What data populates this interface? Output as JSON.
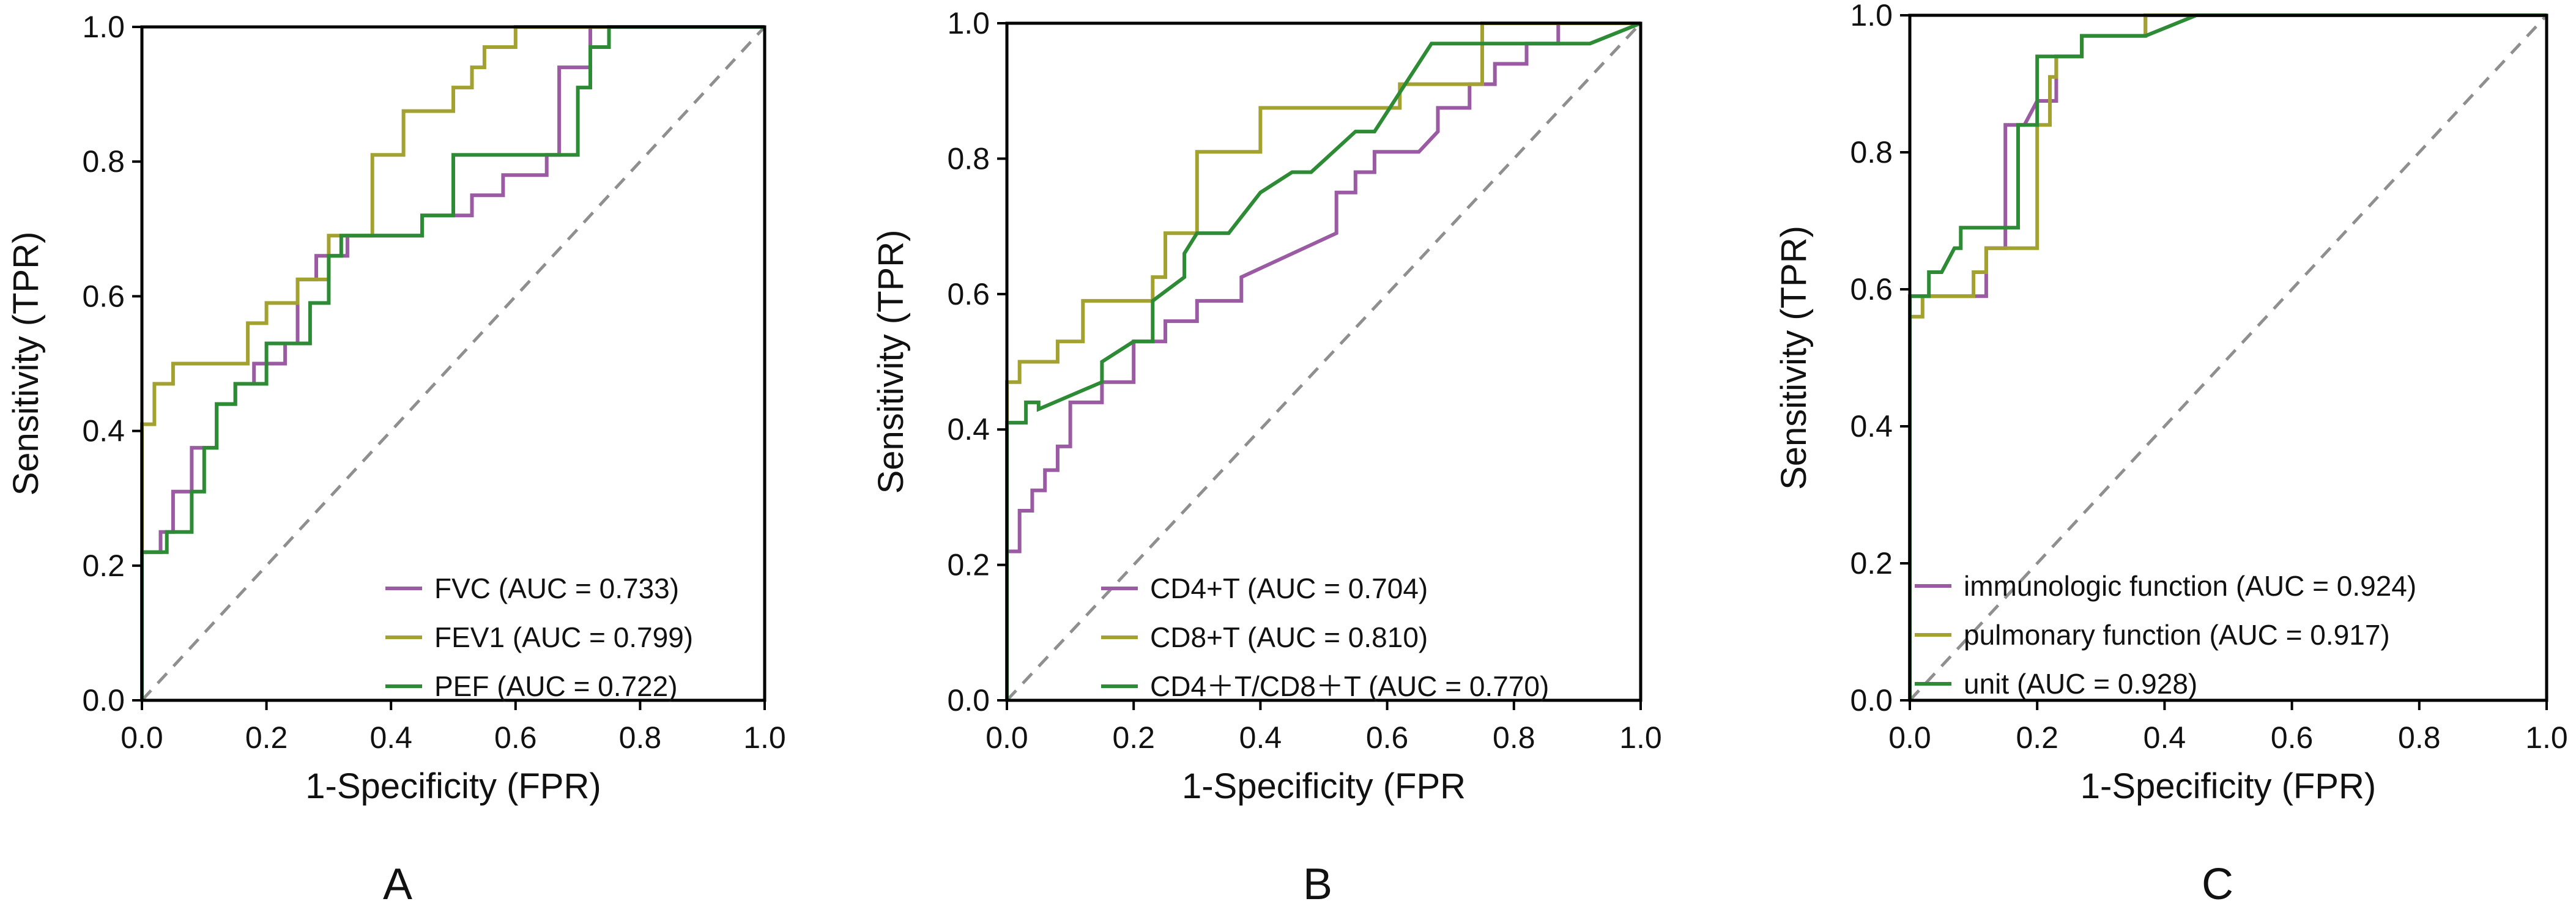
{
  "figure": {
    "panel_labels": [
      "A",
      "B",
      "C"
    ]
  },
  "colors": {
    "purple": "#9a5ba3",
    "olive": "#a3a230",
    "green": "#2e8b35",
    "diagonal": "#8f8f8f",
    "axis": "#000000"
  },
  "chart_data": [
    {
      "type": "line",
      "panel": "A",
      "title": "",
      "xlabel": "1-Specificity (FPR)",
      "ylabel": "Sensitivity (TPR)",
      "xlim": [
        0,
        1
      ],
      "ylim": [
        0,
        1
      ],
      "xticks": [
        "0.0",
        "0.2",
        "0.4",
        "0.6",
        "0.8",
        "1.0"
      ],
      "yticks": [
        "0.0",
        "0.2",
        "0.4",
        "0.6",
        "0.8",
        "1.0"
      ],
      "legend_position": "bottom-right",
      "diagonal": true,
      "series": [
        {
          "name": "FVC (AUC = 0.733)",
          "color": "#9a5ba3",
          "points": [
            [
              0,
              0
            ],
            [
              0,
              0.22
            ],
            [
              0.03,
              0.22
            ],
            [
              0.03,
              0.25
            ],
            [
              0.05,
              0.25
            ],
            [
              0.05,
              0.31
            ],
            [
              0.08,
              0.31
            ],
            [
              0.08,
              0.375
            ],
            [
              0.12,
              0.375
            ],
            [
              0.12,
              0.44
            ],
            [
              0.15,
              0.44
            ],
            [
              0.15,
              0.47
            ],
            [
              0.18,
              0.47
            ],
            [
              0.18,
              0.5
            ],
            [
              0.23,
              0.5
            ],
            [
              0.23,
              0.53
            ],
            [
              0.25,
              0.53
            ],
            [
              0.25,
              0.625
            ],
            [
              0.28,
              0.625
            ],
            [
              0.28,
              0.66
            ],
            [
              0.33,
              0.66
            ],
            [
              0.33,
              0.69
            ],
            [
              0.45,
              0.69
            ],
            [
              0.45,
              0.72
            ],
            [
              0.53,
              0.72
            ],
            [
              0.53,
              0.75
            ],
            [
              0.58,
              0.75
            ],
            [
              0.58,
              0.78
            ],
            [
              0.65,
              0.78
            ],
            [
              0.65,
              0.81
            ],
            [
              0.67,
              0.81
            ],
            [
              0.67,
              0.94
            ],
            [
              0.72,
              0.94
            ],
            [
              0.72,
              1.0
            ],
            [
              1,
              1
            ]
          ]
        },
        {
          "name": "FEV1 (AUC = 0.799)",
          "color": "#a3a230",
          "points": [
            [
              0,
              0
            ],
            [
              0,
              0.41
            ],
            [
              0.02,
              0.41
            ],
            [
              0.02,
              0.47
            ],
            [
              0.05,
              0.47
            ],
            [
              0.05,
              0.5
            ],
            [
              0.17,
              0.5
            ],
            [
              0.17,
              0.56
            ],
            [
              0.2,
              0.56
            ],
            [
              0.2,
              0.59
            ],
            [
              0.25,
              0.59
            ],
            [
              0.25,
              0.625
            ],
            [
              0.3,
              0.625
            ],
            [
              0.3,
              0.69
            ],
            [
              0.37,
              0.69
            ],
            [
              0.37,
              0.81
            ],
            [
              0.42,
              0.81
            ],
            [
              0.42,
              0.875
            ],
            [
              0.5,
              0.875
            ],
            [
              0.5,
              0.91
            ],
            [
              0.53,
              0.91
            ],
            [
              0.53,
              0.94
            ],
            [
              0.55,
              0.94
            ],
            [
              0.55,
              0.97
            ],
            [
              0.6,
              0.97
            ],
            [
              0.6,
              1.0
            ],
            [
              1,
              1
            ]
          ]
        },
        {
          "name": "PEF (AUC = 0.722)",
          "color": "#2e8b35",
          "points": [
            [
              0,
              0
            ],
            [
              0,
              0.22
            ],
            [
              0.04,
              0.22
            ],
            [
              0.04,
              0.25
            ],
            [
              0.08,
              0.25
            ],
            [
              0.08,
              0.31
            ],
            [
              0.1,
              0.31
            ],
            [
              0.1,
              0.375
            ],
            [
              0.12,
              0.375
            ],
            [
              0.12,
              0.44
            ],
            [
              0.15,
              0.44
            ],
            [
              0.15,
              0.47
            ],
            [
              0.2,
              0.47
            ],
            [
              0.2,
              0.53
            ],
            [
              0.27,
              0.53
            ],
            [
              0.27,
              0.59
            ],
            [
              0.3,
              0.59
            ],
            [
              0.3,
              0.66
            ],
            [
              0.32,
              0.66
            ],
            [
              0.32,
              0.69
            ],
            [
              0.45,
              0.69
            ],
            [
              0.45,
              0.72
            ],
            [
              0.5,
              0.72
            ],
            [
              0.5,
              0.81
            ],
            [
              0.7,
              0.81
            ],
            [
              0.7,
              0.91
            ],
            [
              0.72,
              0.91
            ],
            [
              0.72,
              0.97
            ],
            [
              0.75,
              0.97
            ],
            [
              0.75,
              1.0
            ],
            [
              1,
              1
            ]
          ]
        }
      ]
    },
    {
      "type": "line",
      "panel": "B",
      "title": "",
      "xlabel": "1-Specificity (FPR",
      "ylabel": "Sensitivity (TPR)",
      "xlim": [
        0,
        1
      ],
      "ylim": [
        0,
        1
      ],
      "xticks": [
        "0.0",
        "0.2",
        "0.4",
        "0.6",
        "0.8",
        "1.0"
      ],
      "yticks": [
        "0.0",
        "0.2",
        "0.4",
        "0.6",
        "0.8",
        "1.0"
      ],
      "legend_position": "bottom-right",
      "diagonal": true,
      "series": [
        {
          "name": "CD4+T (AUC = 0.704)",
          "color": "#9a5ba3",
          "points": [
            [
              0,
              0
            ],
            [
              0,
              0.22
            ],
            [
              0.02,
              0.22
            ],
            [
              0.02,
              0.28
            ],
            [
              0.04,
              0.28
            ],
            [
              0.04,
              0.31
            ],
            [
              0.06,
              0.31
            ],
            [
              0.06,
              0.34
            ],
            [
              0.08,
              0.34
            ],
            [
              0.08,
              0.375
            ],
            [
              0.1,
              0.375
            ],
            [
              0.1,
              0.44
            ],
            [
              0.15,
              0.44
            ],
            [
              0.15,
              0.47
            ],
            [
              0.2,
              0.47
            ],
            [
              0.2,
              0.53
            ],
            [
              0.25,
              0.53
            ],
            [
              0.25,
              0.56
            ],
            [
              0.3,
              0.56
            ],
            [
              0.3,
              0.59
            ],
            [
              0.37,
              0.59
            ],
            [
              0.37,
              0.625
            ],
            [
              0.52,
              0.69
            ],
            [
              0.52,
              0.75
            ],
            [
              0.55,
              0.75
            ],
            [
              0.55,
              0.78
            ],
            [
              0.58,
              0.78
            ],
            [
              0.58,
              0.81
            ],
            [
              0.62,
              0.81
            ],
            [
              0.65,
              0.81
            ],
            [
              0.68,
              0.84
            ],
            [
              0.68,
              0.875
            ],
            [
              0.73,
              0.875
            ],
            [
              0.73,
              0.91
            ],
            [
              0.77,
              0.91
            ],
            [
              0.77,
              0.94
            ],
            [
              0.82,
              0.94
            ],
            [
              0.82,
              0.97
            ],
            [
              0.87,
              0.97
            ],
            [
              0.87,
              1.0
            ],
            [
              1,
              1
            ]
          ]
        },
        {
          "name": "CD8+T (AUC = 0.810)",
          "color": "#a3a230",
          "points": [
            [
              0,
              0
            ],
            [
              0,
              0.47
            ],
            [
              0.02,
              0.47
            ],
            [
              0.02,
              0.5
            ],
            [
              0.08,
              0.5
            ],
            [
              0.08,
              0.53
            ],
            [
              0.12,
              0.53
            ],
            [
              0.12,
              0.59
            ],
            [
              0.23,
              0.59
            ],
            [
              0.23,
              0.625
            ],
            [
              0.25,
              0.625
            ],
            [
              0.25,
              0.69
            ],
            [
              0.3,
              0.69
            ],
            [
              0.3,
              0.81
            ],
            [
              0.4,
              0.81
            ],
            [
              0.4,
              0.875
            ],
            [
              0.62,
              0.875
            ],
            [
              0.62,
              0.91
            ],
            [
              0.75,
              0.91
            ],
            [
              0.75,
              1.0
            ],
            [
              1,
              1
            ]
          ]
        },
        {
          "name": "CD4＋T/CD8＋T (AUC = 0.770)",
          "color": "#2e8b35",
          "points": [
            [
              0,
              0
            ],
            [
              0,
              0.41
            ],
            [
              0.03,
              0.41
            ],
            [
              0.03,
              0.44
            ],
            [
              0.05,
              0.44
            ],
            [
              0.05,
              0.43
            ],
            [
              0.15,
              0.47
            ],
            [
              0.15,
              0.5
            ],
            [
              0.2,
              0.53
            ],
            [
              0.23,
              0.53
            ],
            [
              0.23,
              0.59
            ],
            [
              0.28,
              0.625
            ],
            [
              0.28,
              0.66
            ],
            [
              0.3,
              0.69
            ],
            [
              0.35,
              0.69
            ],
            [
              0.4,
              0.75
            ],
            [
              0.45,
              0.78
            ],
            [
              0.48,
              0.78
            ],
            [
              0.55,
              0.84
            ],
            [
              0.58,
              0.84
            ],
            [
              0.67,
              0.97
            ],
            [
              0.92,
              0.97
            ],
            [
              1,
              1.0
            ]
          ]
        }
      ]
    },
    {
      "type": "line",
      "panel": "C",
      "title": "",
      "xlabel": "1-Specificity (FPR)",
      "ylabel": "Sensitivity (TPR)",
      "xlim": [
        0,
        1
      ],
      "ylim": [
        0,
        1
      ],
      "xticks": [
        "0.0",
        "0.2",
        "0.4",
        "0.6",
        "0.8",
        "1.0"
      ],
      "yticks": [
        "0.0",
        "0.2",
        "0.4",
        "0.6",
        "0.8",
        "1.0"
      ],
      "legend_position": "bottom-left",
      "diagonal": true,
      "series": [
        {
          "name": "immunologic function (AUC = 0.924)",
          "color": "#9a5ba3",
          "points": [
            [
              0,
              0
            ],
            [
              0,
              0.59
            ],
            [
              0.12,
              0.59
            ],
            [
              0.12,
              0.66
            ],
            [
              0.15,
              0.66
            ],
            [
              0.15,
              0.84
            ],
            [
              0.18,
              0.84
            ],
            [
              0.2,
              0.875
            ],
            [
              0.23,
              0.875
            ],
            [
              0.23,
              0.94
            ],
            [
              0.27,
              0.94
            ],
            [
              0.27,
              0.97
            ],
            [
              0.37,
              0.97
            ],
            [
              0.37,
              1.0
            ],
            [
              1,
              1
            ]
          ]
        },
        {
          "name": "pulmonary function (AUC = 0.917)",
          "color": "#a3a230",
          "points": [
            [
              0,
              0
            ],
            [
              0,
              0.56
            ],
            [
              0.02,
              0.56
            ],
            [
              0.02,
              0.59
            ],
            [
              0.1,
              0.59
            ],
            [
              0.1,
              0.625
            ],
            [
              0.12,
              0.625
            ],
            [
              0.12,
              0.66
            ],
            [
              0.2,
              0.66
            ],
            [
              0.2,
              0.84
            ],
            [
              0.22,
              0.84
            ],
            [
              0.22,
              0.91
            ],
            [
              0.23,
              0.91
            ],
            [
              0.23,
              0.94
            ],
            [
              0.27,
              0.94
            ],
            [
              0.27,
              0.97
            ],
            [
              0.37,
              0.97
            ],
            [
              0.37,
              1.0
            ],
            [
              1,
              1
            ]
          ]
        },
        {
          "name": "unit (AUC = 0.928)",
          "color": "#2e8b35",
          "points": [
            [
              0,
              0
            ],
            [
              0,
              0.59
            ],
            [
              0.03,
              0.59
            ],
            [
              0.03,
              0.625
            ],
            [
              0.05,
              0.625
            ],
            [
              0.07,
              0.66
            ],
            [
              0.08,
              0.66
            ],
            [
              0.08,
              0.69
            ],
            [
              0.17,
              0.69
            ],
            [
              0.17,
              0.84
            ],
            [
              0.2,
              0.84
            ],
            [
              0.2,
              0.94
            ],
            [
              0.27,
              0.94
            ],
            [
              0.27,
              0.97
            ],
            [
              0.37,
              0.97
            ],
            [
              0.45,
              1.0
            ],
            [
              1,
              1
            ]
          ]
        }
      ]
    }
  ]
}
